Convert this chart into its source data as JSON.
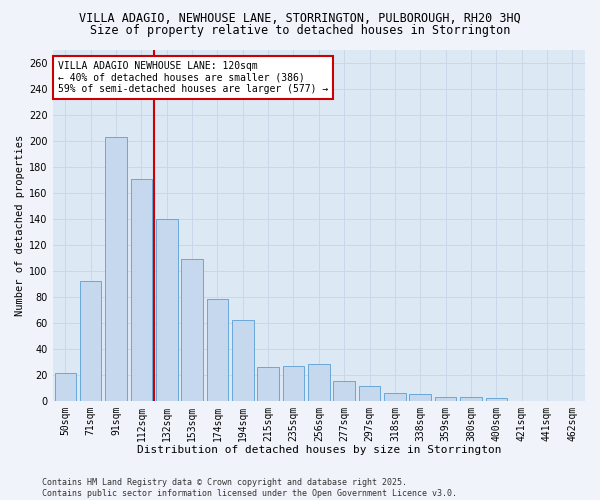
{
  "title1": "VILLA ADAGIO, NEWHOUSE LANE, STORRINGTON, PULBOROUGH, RH20 3HQ",
  "title2": "Size of property relative to detached houses in Storrington",
  "xlabel": "Distribution of detached houses by size in Storrington",
  "ylabel": "Number of detached properties",
  "categories": [
    "50sqm",
    "71sqm",
    "91sqm",
    "112sqm",
    "132sqm",
    "153sqm",
    "174sqm",
    "194sqm",
    "215sqm",
    "235sqm",
    "256sqm",
    "277sqm",
    "297sqm",
    "318sqm",
    "338sqm",
    "359sqm",
    "380sqm",
    "400sqm",
    "421sqm",
    "441sqm",
    "462sqm"
  ],
  "values": [
    21,
    92,
    203,
    171,
    140,
    109,
    78,
    62,
    26,
    27,
    28,
    15,
    11,
    6,
    5,
    3,
    3,
    2,
    0,
    0,
    0
  ],
  "bar_color": "#c5d8ed",
  "bar_edge_color": "#5a9fd4",
  "ref_line_x": 3,
  "ref_line_color": "#cc0000",
  "annotation_text": "VILLA ADAGIO NEWHOUSE LANE: 120sqm\n← 40% of detached houses are smaller (386)\n59% of semi-detached houses are larger (577) →",
  "annotation_box_color": "#ffffff",
  "annotation_box_edge_color": "#cc0000",
  "ylim": [
    0,
    270
  ],
  "yticks": [
    0,
    20,
    40,
    60,
    80,
    100,
    120,
    140,
    160,
    180,
    200,
    220,
    240,
    260
  ],
  "grid_color": "#c8d8e8",
  "plot_bg_color": "#dce9f5",
  "fig_bg_color": "#f0f4fa",
  "footer_text": "Contains HM Land Registry data © Crown copyright and database right 2025.\nContains public sector information licensed under the Open Government Licence v3.0.",
  "title1_fontsize": 8.5,
  "title2_fontsize": 8.5,
  "xlabel_fontsize": 8,
  "ylabel_fontsize": 7.5,
  "tick_fontsize": 7,
  "annotation_fontsize": 7,
  "footer_fontsize": 6
}
